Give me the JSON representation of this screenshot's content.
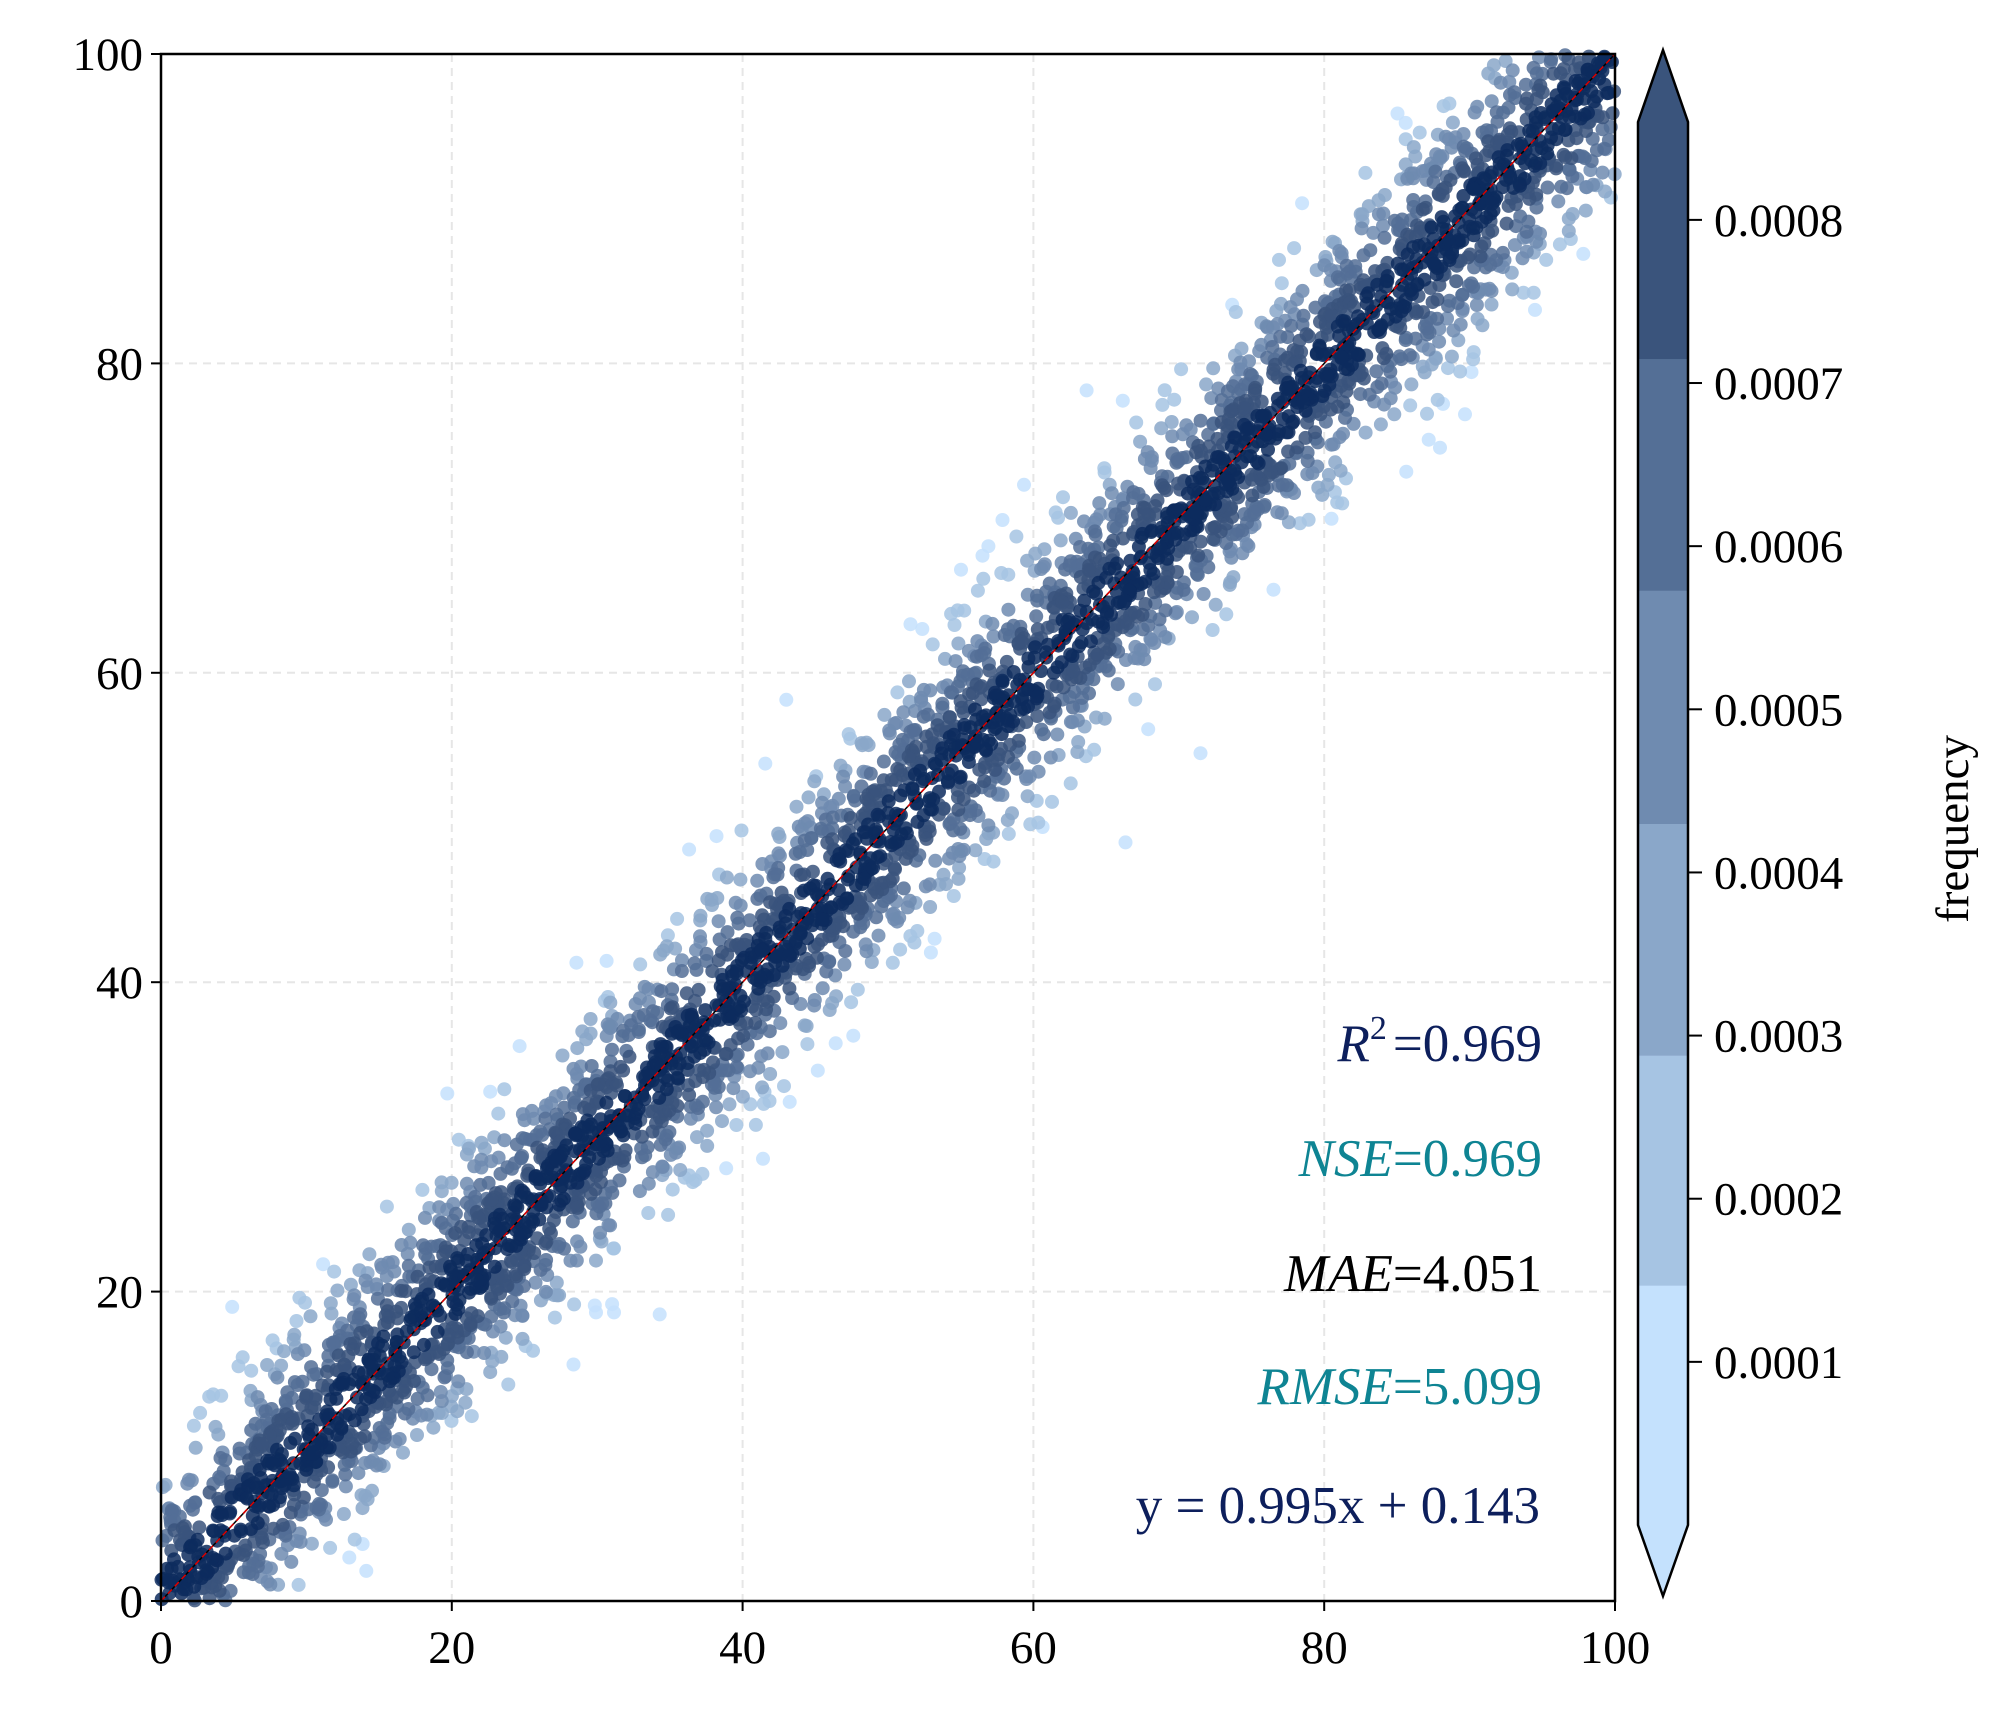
{
  "chart_data": {
    "type": "scatter",
    "title": "",
    "xlabel": "",
    "ylabel": "",
    "xlim": [
      0,
      100
    ],
    "ylim": [
      0,
      100
    ],
    "x_ticks": [
      "0",
      "20",
      "40",
      "60",
      "80",
      "100"
    ],
    "y_ticks": [
      "0",
      "20",
      "40",
      "60",
      "80",
      "100"
    ],
    "grid": true,
    "point_model": {
      "slope": 0.995,
      "intercept": 0.143,
      "residual_sd": 5.1,
      "count": 4000,
      "x_range": [
        0,
        100
      ]
    },
    "reference_line": "1:1",
    "stats": [
      {
        "label": "R",
        "sup": "2",
        "eq": "=",
        "value": "0.969",
        "color": "#0d1f5c"
      },
      {
        "label": "NSE",
        "sup": "",
        "eq": "=",
        "value": "0.969",
        "color": "#0e8493"
      },
      {
        "label": "MAE",
        "sup": "",
        "eq": "=",
        "value": "4.051",
        "color": "#000000"
      },
      {
        "label": "RMSE",
        "sup": "",
        "eq": "=",
        "value": "5.099",
        "color": "#0e8493"
      }
    ],
    "fit_equation": "y = 0.995x + 0.143",
    "fit_color": "#0d1f5c",
    "colorbar": {
      "label": "frequency",
      "ticks": [
        "0.0001",
        "0.0002",
        "0.0003",
        "0.0004",
        "0.0005",
        "0.0006",
        "0.0007",
        "0.0008"
      ],
      "tick_values": [
        0.0001,
        0.0002,
        0.0003,
        0.0004,
        0.0005,
        0.0006,
        0.0007,
        0.0008
      ],
      "range": [
        0.0,
        0.00086
      ],
      "levels": [
        0.0,
        0.000147,
        0.000288,
        0.00043,
        0.000573,
        0.000715,
        0.00086
      ],
      "colors": [
        "#c4e1fd",
        "#a6c4e3",
        "#8aa7c9",
        "#6f8bb0",
        "#546f96",
        "#3a547c"
      ],
      "extend_max_color": "#3a547c",
      "extend_min_color": "#c4e1fd",
      "densest_point_color": "#0d2b5e"
    }
  }
}
